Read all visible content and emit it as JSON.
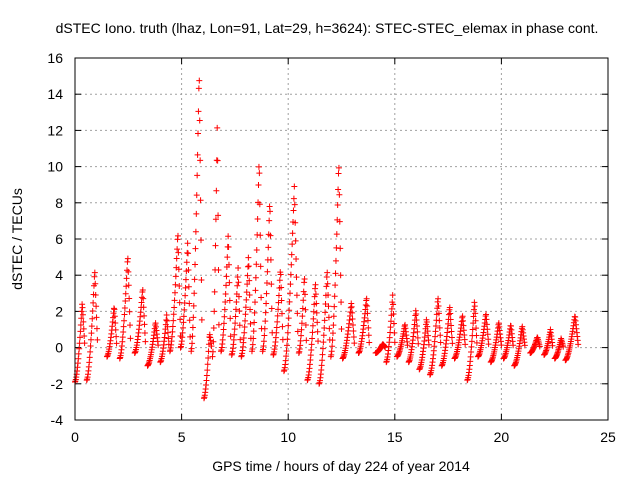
{
  "chart_data": {
    "type": "scatter",
    "title": "dSTEC Iono. truth (lhaz, Lon=91, Lat=29, h=3624): STEC-STEC_elemax in phase cont.",
    "xlabel": "GPS time / hours of day 224 of year 2014",
    "ylabel": "dSTEC  / TECUs",
    "xlim": [
      0,
      25
    ],
    "ylim": [
      -4,
      16
    ],
    "xticks": [
      0,
      5,
      10,
      15,
      20,
      25
    ],
    "yticks": [
      -4,
      -2,
      0,
      2,
      4,
      6,
      8,
      10,
      12,
      14,
      16
    ],
    "grid": true,
    "legend": "none",
    "marker": "+",
    "series": [
      {
        "name": "dSTEC",
        "color": "#ff0000",
        "arcs": [
          {
            "t0": 0.0,
            "t1": 0.45,
            "v0": -1.9,
            "v1": 2.5
          },
          {
            "t0": 0.55,
            "t1": 1.05,
            "v0": -1.8,
            "v1": 4.3
          },
          {
            "t0": 1.5,
            "t1": 1.95,
            "v0": -0.5,
            "v1": 2.3
          },
          {
            "t0": 2.1,
            "t1": 2.6,
            "v0": -0.6,
            "v1": 5.1
          },
          {
            "t0": 2.8,
            "t1": 3.3,
            "v0": -0.3,
            "v1": 3.3
          },
          {
            "t0": 3.4,
            "t1": 3.9,
            "v0": -1.0,
            "v1": 1.4
          },
          {
            "t0": 4.0,
            "t1": 4.4,
            "v0": -0.8,
            "v1": 1.8
          },
          {
            "t0": 4.45,
            "t1": 4.95,
            "v0": -0.2,
            "v1": 6.4
          },
          {
            "t0": 4.95,
            "t1": 5.4,
            "v0": 0.0,
            "v1": 5.9
          },
          {
            "t0": 5.45,
            "t1": 5.95,
            "v0": -0.2,
            "v1": 15.3
          },
          {
            "t0": 6.05,
            "t1": 6.4,
            "v0": -2.8,
            "v1": 0.8
          },
          {
            "t0": 6.45,
            "t1": 6.75,
            "v0": -0.5,
            "v1": 12.6
          },
          {
            "t0": 6.85,
            "t1": 7.3,
            "v0": -0.2,
            "v1": 6.3
          },
          {
            "t0": 7.35,
            "t1": 7.75,
            "v0": -0.4,
            "v1": 4.4
          },
          {
            "t0": 7.8,
            "t1": 8.25,
            "v0": -0.5,
            "v1": 5.1
          },
          {
            "t0": 8.3,
            "t1": 8.75,
            "v0": -0.2,
            "v1": 10.5
          },
          {
            "t0": 8.8,
            "t1": 9.25,
            "v0": -0.2,
            "v1": 8.2
          },
          {
            "t0": 9.3,
            "t1": 9.75,
            "v0": -0.4,
            "v1": 4.4
          },
          {
            "t0": 9.8,
            "t1": 10.45,
            "v0": -1.3,
            "v1": 8.9
          },
          {
            "t0": 10.5,
            "t1": 10.85,
            "v0": -0.3,
            "v1": 4.0
          },
          {
            "t0": 10.9,
            "t1": 11.4,
            "v0": -1.8,
            "v1": 3.6
          },
          {
            "t0": 11.45,
            "t1": 11.95,
            "v0": -2.0,
            "v1": 4.3
          },
          {
            "t0": 12.0,
            "t1": 12.5,
            "v0": -0.5,
            "v1": 10.3
          },
          {
            "t0": 12.55,
            "t1": 13.1,
            "v0": -0.6,
            "v1": 2.5
          },
          {
            "t0": 13.3,
            "t1": 13.8,
            "v0": -0.3,
            "v1": 2.8
          },
          {
            "t0": 14.1,
            "t1": 14.55,
            "v0": -0.3,
            "v1": 0.2
          },
          {
            "t0": 14.6,
            "t1": 15.0,
            "v0": -0.8,
            "v1": 2.9
          },
          {
            "t0": 15.1,
            "t1": 15.6,
            "v0": -0.5,
            "v1": 1.3
          },
          {
            "t0": 15.65,
            "t1": 16.1,
            "v0": -0.8,
            "v1": 2.1
          },
          {
            "t0": 16.15,
            "t1": 16.6,
            "v0": -1.2,
            "v1": 1.6
          },
          {
            "t0": 16.65,
            "t1": 17.15,
            "v0": -1.5,
            "v1": 2.8
          },
          {
            "t0": 17.2,
            "t1": 17.7,
            "v0": -1.0,
            "v1": 2.3
          },
          {
            "t0": 17.8,
            "t1": 18.3,
            "v0": -0.6,
            "v1": 1.8
          },
          {
            "t0": 18.4,
            "t1": 18.85,
            "v0": -1.8,
            "v1": 2.6
          },
          {
            "t0": 18.9,
            "t1": 19.4,
            "v0": -0.5,
            "v1": 1.9
          },
          {
            "t0": 19.5,
            "t1": 20.0,
            "v0": -0.8,
            "v1": 1.4
          },
          {
            "t0": 20.1,
            "t1": 20.55,
            "v0": -0.6,
            "v1": 1.3
          },
          {
            "t0": 20.6,
            "t1": 21.1,
            "v0": -1.0,
            "v1": 1.2
          },
          {
            "t0": 21.35,
            "t1": 21.8,
            "v0": -0.3,
            "v1": 0.6
          },
          {
            "t0": 22.0,
            "t1": 22.4,
            "v0": -0.4,
            "v1": 1.0
          },
          {
            "t0": 22.5,
            "t1": 22.9,
            "v0": -0.6,
            "v1": 0.5
          },
          {
            "t0": 23.0,
            "t1": 23.6,
            "v0": -0.7,
            "v1": 1.8
          }
        ]
      }
    ]
  }
}
